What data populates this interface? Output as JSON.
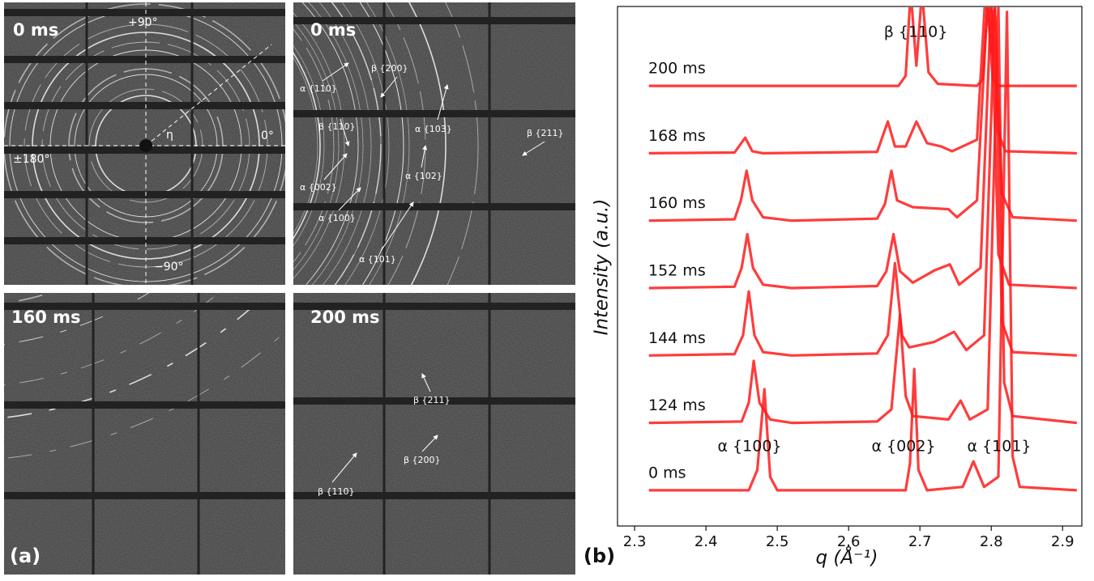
{
  "images": {
    "panel_label": "(a)",
    "panels": [
      {
        "time": "0 ms",
        "labels": [
          "+90°",
          "0°",
          "±180°",
          "−90°",
          "η"
        ]
      },
      {
        "time": "0 ms",
        "labels": [
          "α {110}",
          "β {200}",
          "α {103}",
          "β {110}",
          "β {211}",
          "α {002}",
          "α {102}",
          "α {100}",
          "α {101}"
        ]
      },
      {
        "time": "160 ms",
        "labels": []
      },
      {
        "time": "200 ms",
        "labels": [
          "β {211}",
          "β {200}",
          "β {110}"
        ]
      }
    ]
  },
  "chart_data": {
    "type": "line",
    "panel_label": "(b)",
    "x_label": "q (Å⁻¹)",
    "y_label": "Intensity (a.u.)",
    "xlim": [
      2.276,
      2.927
    ],
    "xticks": [
      2.3,
      2.4,
      2.5,
      2.6,
      2.7,
      2.8,
      2.9
    ],
    "ylim": [
      -0.53,
      7.18
    ],
    "annotations": [
      "β {110}",
      "α {100}",
      "α {002}",
      "α {101}"
    ],
    "series": [
      {
        "name": "0 ms",
        "color": "#ff1a1a",
        "x": [
          2.32,
          2.46,
          2.472,
          2.482,
          2.49,
          2.5,
          2.68,
          2.686,
          2.692,
          2.698,
          2.71,
          2.76,
          2.775,
          2.79,
          2.81,
          2.822,
          2.83,
          2.84,
          2.92
        ],
        "values": [
          0,
          0,
          0.3,
          1.5,
          0.2,
          0,
          0,
          0.4,
          1.8,
          0.3,
          0,
          0.05,
          0.43,
          0.05,
          0.2,
          7.1,
          0.5,
          0.05,
          0
        ]
      },
      {
        "name": "124 ms",
        "color": "#ff1a1a",
        "x": [
          2.32,
          2.45,
          2.46,
          2.467,
          2.475,
          2.49,
          2.52,
          2.64,
          2.66,
          2.672,
          2.68,
          2.69,
          2.74,
          2.757,
          2.77,
          2.795,
          2.81,
          2.818,
          2.83,
          2.92
        ],
        "values": [
          0,
          0.02,
          0.3,
          0.92,
          0.3,
          0.05,
          0,
          0.02,
          0.2,
          1.6,
          0.4,
          0.1,
          0.05,
          0.33,
          0.05,
          0.2,
          6.2,
          0.6,
          0.1,
          0
        ]
      },
      {
        "name": "144 ms",
        "color": "#ff1a1a",
        "x": [
          2.32,
          2.44,
          2.452,
          2.46,
          2.468,
          2.48,
          2.52,
          2.64,
          2.655,
          2.665,
          2.675,
          2.685,
          2.72,
          2.748,
          2.765,
          2.79,
          2.805,
          2.815,
          2.83,
          2.92
        ],
        "values": [
          0,
          0.02,
          0.3,
          0.95,
          0.3,
          0.05,
          0,
          0.03,
          0.3,
          1.37,
          0.3,
          0.12,
          0.2,
          0.35,
          0.08,
          0.3,
          5.2,
          0.5,
          0.05,
          0
        ]
      },
      {
        "name": "152 ms",
        "color": "#ff1a1a",
        "x": [
          2.32,
          2.44,
          2.45,
          2.458,
          2.466,
          2.48,
          2.52,
          2.64,
          2.653,
          2.663,
          2.672,
          2.69,
          2.72,
          2.742,
          2.755,
          2.785,
          2.8,
          2.81,
          2.825,
          2.92
        ],
        "values": [
          0,
          0.02,
          0.3,
          0.8,
          0.3,
          0.05,
          0,
          0.03,
          0.25,
          0.8,
          0.25,
          0.08,
          0.26,
          0.35,
          0.05,
          0.3,
          4.3,
          0.5,
          0.05,
          0
        ]
      },
      {
        "name": "160 ms",
        "color": "#ff1a1a",
        "x": [
          2.32,
          2.44,
          2.449,
          2.457,
          2.465,
          2.48,
          2.52,
          2.64,
          2.651,
          2.66,
          2.668,
          2.69,
          2.74,
          2.752,
          2.78,
          2.795,
          2.8,
          2.805,
          2.815,
          2.83,
          2.92
        ],
        "values": [
          0,
          0.02,
          0.3,
          0.74,
          0.3,
          0.05,
          0,
          0.03,
          0.25,
          0.74,
          0.3,
          0.2,
          0.17,
          0.05,
          0.3,
          3.3,
          2.5,
          3.2,
          0.4,
          0.05,
          0
        ]
      },
      {
        "name": "168 ms",
        "color": "#ff1a1a",
        "x": [
          2.32,
          2.44,
          2.455,
          2.465,
          2.48,
          2.64,
          2.655,
          2.665,
          2.68,
          2.695,
          2.71,
          2.73,
          2.745,
          2.78,
          2.792,
          2.8,
          2.81,
          2.82,
          2.92
        ],
        "values": [
          0,
          0.01,
          0.23,
          0.03,
          0,
          0.02,
          0.47,
          0.1,
          0.1,
          0.47,
          0.15,
          0.1,
          0.03,
          0.2,
          2.4,
          2.2,
          0.3,
          0.03,
          0
        ]
      },
      {
        "name": "200 ms",
        "color": "#ff1a1a",
        "x": [
          2.32,
          2.67,
          2.68,
          2.687,
          2.695,
          2.703,
          2.712,
          2.725,
          2.78,
          2.788,
          2.795,
          2.802,
          2.81,
          2.92
        ],
        "values": [
          0,
          0,
          0.15,
          1.4,
          0.3,
          1.4,
          0.2,
          0.03,
          0,
          0.1,
          1.2,
          0.1,
          0,
          0
        ]
      }
    ]
  }
}
